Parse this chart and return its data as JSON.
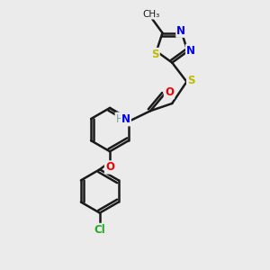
{
  "bg_color": "#ebebeb",
  "bond_color": "#1a1a1a",
  "N_color": "#0000ee",
  "S_color": "#bbbb00",
  "O_color": "#ee0000",
  "Cl_color": "#22aa22",
  "H_color": "#7a9faa",
  "figsize": [
    3.0,
    3.0
  ],
  "dpi": 100,
  "xlim": [
    0,
    10
  ],
  "ylim": [
    0,
    10
  ]
}
